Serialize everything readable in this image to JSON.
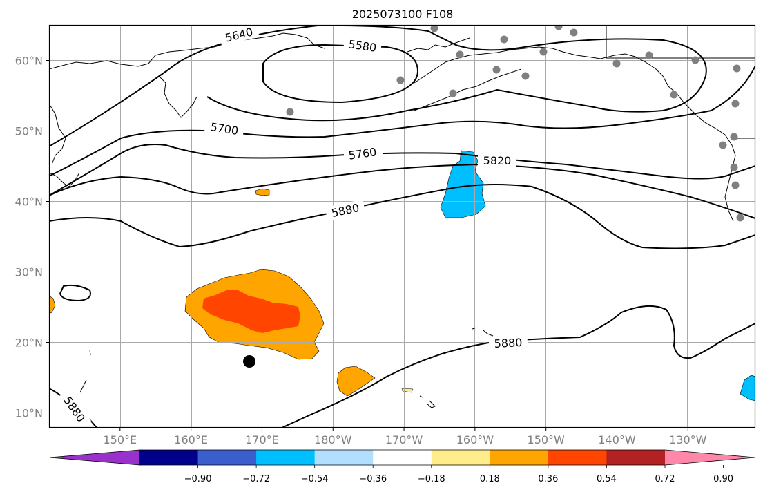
{
  "title": "2025073100 F108",
  "map": {
    "lat_ticks": [
      {
        "value": 60,
        "label": "60°N"
      },
      {
        "value": 50,
        "label": "50°N"
      },
      {
        "value": 40,
        "label": "40°N"
      },
      {
        "value": 30,
        "label": "30°N"
      },
      {
        "value": 20,
        "label": "20°N"
      },
      {
        "value": 10,
        "label": "10°N"
      }
    ],
    "lon_ticks": [
      {
        "value": 150,
        "label": "150°E"
      },
      {
        "value": 160,
        "label": "160°E"
      },
      {
        "value": 170,
        "label": "170°E"
      },
      {
        "value": 180,
        "label": "180°W"
      },
      {
        "value": 190,
        "label": "170°W"
      },
      {
        "value": 200,
        "label": "160°W"
      },
      {
        "value": 210,
        "label": "150°W"
      },
      {
        "value": 220,
        "label": "140°W"
      },
      {
        "value": 230,
        "label": "130°W"
      }
    ],
    "contour_labels": [
      "5640",
      "5580",
      "5700",
      "5760",
      "5820",
      "5880",
      "5880",
      "5880"
    ]
  },
  "colorbar": {
    "ticks": [
      "−0.90",
      "−0.72",
      "−0.54",
      "−0.36",
      "−0.18",
      "0.18",
      "0.36",
      "0.54",
      "0.72",
      "0.90"
    ],
    "colors": [
      "#9932CC",
      "#00008B",
      "#3A5FCD",
      "#00BFFF",
      "#B2DFFF",
      "#FFFFFF",
      "#FFEC8B",
      "#FFA500",
      "#FF4500",
      "#B22222",
      "#FF88AA"
    ]
  }
}
